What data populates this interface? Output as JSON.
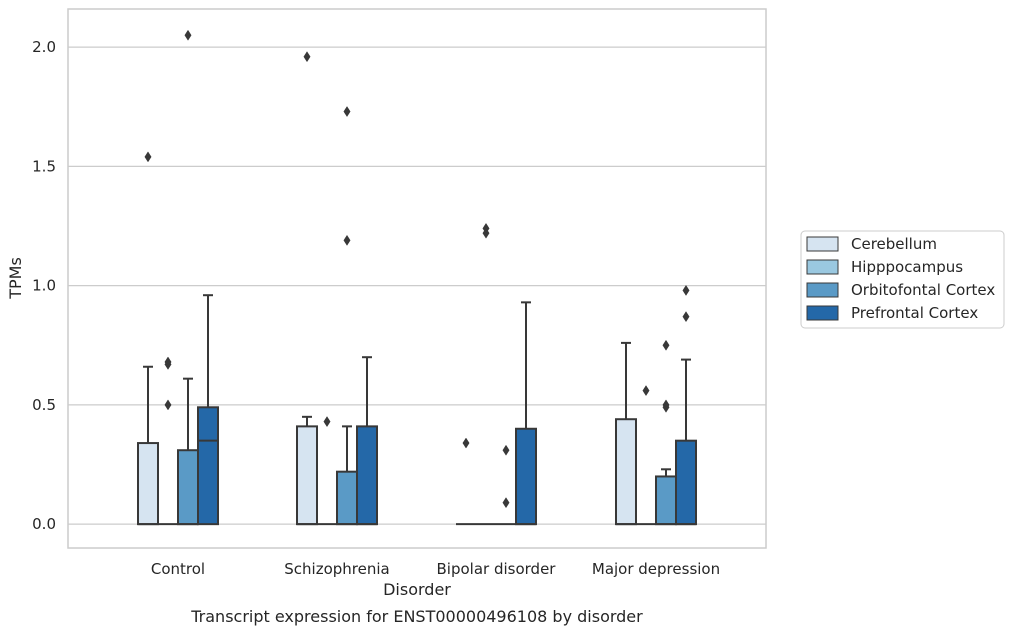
{
  "chart_data": {
    "type": "box",
    "xlabel": "Disorder",
    "ylabel": "TPMs",
    "caption": "Transcript expression for ENST00000496108 by disorder",
    "categories": [
      "Control",
      "Schizophrenia",
      "Bipolar disorder",
      "Major depression"
    ],
    "ylim": [
      -0.1,
      2.16
    ],
    "yticks": [
      0.0,
      0.5,
      1.0,
      1.5,
      2.0
    ],
    "ytick_labels": [
      "0.0",
      "0.5",
      "1.0",
      "1.5",
      "2.0"
    ],
    "grid": true,
    "legend_position": "right",
    "series": [
      {
        "name": "Cerebellum",
        "color": "#d6e4f1",
        "boxes": [
          {
            "q1": 0.0,
            "median": 0.0,
            "q3": 0.34,
            "whisker_low": 0.0,
            "whisker_high": 0.66,
            "outliers": [
              1.54
            ]
          },
          {
            "q1": 0.0,
            "median": 0.0,
            "q3": 0.41,
            "whisker_low": 0.0,
            "whisker_high": 0.45,
            "outliers": [
              1.96
            ]
          },
          {
            "q1": 0.0,
            "median": 0.0,
            "q3": 0.0,
            "whisker_low": 0.0,
            "whisker_high": 0.0,
            "outliers": [
              0.34
            ]
          },
          {
            "q1": 0.0,
            "median": 0.0,
            "q3": 0.44,
            "whisker_low": 0.0,
            "whisker_high": 0.76,
            "outliers": []
          }
        ]
      },
      {
        "name": "Hipppocampus",
        "color": "#9ac8e0",
        "boxes": [
          {
            "q1": 0.0,
            "median": 0.0,
            "q3": 0.0,
            "whisker_low": 0.0,
            "whisker_high": 0.0,
            "outliers": [
              0.5,
              0.67,
              0.68
            ]
          },
          {
            "q1": 0.0,
            "median": 0.0,
            "q3": 0.0,
            "whisker_low": 0.0,
            "whisker_high": 0.0,
            "outliers": [
              0.43
            ]
          },
          {
            "q1": 0.0,
            "median": 0.0,
            "q3": 0.0,
            "whisker_low": 0.0,
            "whisker_high": 0.0,
            "outliers": [
              1.22,
              1.24
            ]
          },
          {
            "q1": 0.0,
            "median": 0.0,
            "q3": 0.0,
            "whisker_low": 0.0,
            "whisker_high": 0.0,
            "outliers": [
              0.56
            ]
          }
        ]
      },
      {
        "name": "Orbitofontal Cortex",
        "color": "#5a9ac6",
        "boxes": [
          {
            "q1": 0.0,
            "median": 0.0,
            "q3": 0.31,
            "whisker_low": 0.0,
            "whisker_high": 0.61,
            "outliers": [
              2.05
            ]
          },
          {
            "q1": 0.0,
            "median": 0.0,
            "q3": 0.22,
            "whisker_low": 0.0,
            "whisker_high": 0.41,
            "outliers": [
              1.19,
              1.73
            ]
          },
          {
            "q1": 0.0,
            "median": 0.0,
            "q3": 0.0,
            "whisker_low": 0.0,
            "whisker_high": 0.0,
            "outliers": [
              0.09,
              0.31
            ]
          },
          {
            "q1": 0.0,
            "median": 0.0,
            "q3": 0.2,
            "whisker_low": 0.0,
            "whisker_high": 0.23,
            "outliers": [
              0.49,
              0.5,
              0.75
            ]
          }
        ]
      },
      {
        "name": "Prefrontal Cortex",
        "color": "#2468a8",
        "boxes": [
          {
            "q1": 0.0,
            "median": 0.35,
            "q3": 0.49,
            "whisker_low": 0.0,
            "whisker_high": 0.96,
            "outliers": []
          },
          {
            "q1": 0.0,
            "median": 0.0,
            "q3": 0.41,
            "whisker_low": 0.0,
            "whisker_high": 0.7,
            "outliers": []
          },
          {
            "q1": 0.0,
            "median": 0.0,
            "q3": 0.4,
            "whisker_low": 0.0,
            "whisker_high": 0.93,
            "outliers": []
          },
          {
            "q1": 0.0,
            "median": 0.0,
            "q3": 0.35,
            "whisker_low": 0.0,
            "whisker_high": 0.69,
            "outliers": [
              0.87,
              0.98
            ]
          }
        ]
      }
    ]
  }
}
